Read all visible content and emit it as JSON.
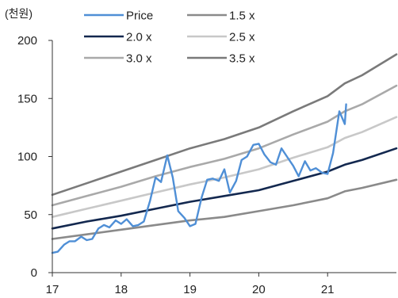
{
  "chart_data": {
    "type": "line",
    "unit_label": "(천원)",
    "xlabel": "",
    "ylabel": "",
    "xlim": [
      17.0,
      22.0
    ],
    "ylim": [
      0,
      200
    ],
    "x_ticks": [
      17,
      18,
      19,
      20,
      21
    ],
    "y_ticks": [
      0,
      50,
      100,
      150,
      200
    ],
    "grid": false,
    "legend_position": "top",
    "legend_order": [
      0,
      1,
      2,
      3,
      4,
      5
    ],
    "series": [
      {
        "name": "Price",
        "color": "#4f8fd6",
        "width": 2.4,
        "points": [
          [
            17.0,
            17
          ],
          [
            17.08,
            18
          ],
          [
            17.17,
            24
          ],
          [
            17.25,
            27
          ],
          [
            17.33,
            27
          ],
          [
            17.42,
            31
          ],
          [
            17.5,
            28
          ],
          [
            17.58,
            29
          ],
          [
            17.67,
            38
          ],
          [
            17.75,
            41
          ],
          [
            17.83,
            39
          ],
          [
            17.92,
            45
          ],
          [
            18.0,
            42
          ],
          [
            18.08,
            46
          ],
          [
            18.17,
            40
          ],
          [
            18.25,
            41
          ],
          [
            18.33,
            44
          ],
          [
            18.42,
            62
          ],
          [
            18.5,
            82
          ],
          [
            18.58,
            78
          ],
          [
            18.67,
            101
          ],
          [
            18.75,
            82
          ],
          [
            18.83,
            53
          ],
          [
            18.92,
            47
          ],
          [
            19.0,
            40
          ],
          [
            19.08,
            42
          ],
          [
            19.17,
            65
          ],
          [
            19.25,
            80
          ],
          [
            19.33,
            81
          ],
          [
            19.42,
            79
          ],
          [
            19.5,
            89
          ],
          [
            19.58,
            69
          ],
          [
            19.67,
            79
          ],
          [
            19.75,
            97
          ],
          [
            19.83,
            100
          ],
          [
            19.92,
            110
          ],
          [
            20.0,
            111
          ],
          [
            20.08,
            102
          ],
          [
            20.17,
            95
          ],
          [
            20.25,
            93
          ],
          [
            20.33,
            107
          ],
          [
            20.42,
            99
          ],
          [
            20.5,
            92
          ],
          [
            20.58,
            83
          ],
          [
            20.67,
            96
          ],
          [
            20.75,
            88
          ],
          [
            20.83,
            90
          ],
          [
            20.92,
            86
          ],
          [
            21.0,
            85
          ],
          [
            21.08,
            103
          ],
          [
            21.17,
            139
          ],
          [
            21.25,
            128
          ],
          [
            21.27,
            145
          ]
        ]
      },
      {
        "name": "1.5 x",
        "color": "#8a8a8a",
        "width": 2.6,
        "points": [
          [
            17.0,
            29
          ],
          [
            17.5,
            33
          ],
          [
            18.0,
            37
          ],
          [
            18.5,
            41
          ],
          [
            19.0,
            45
          ],
          [
            19.5,
            48
          ],
          [
            20.0,
            53
          ],
          [
            20.5,
            58
          ],
          [
            21.0,
            64
          ],
          [
            21.25,
            70
          ],
          [
            21.5,
            73
          ],
          [
            22.0,
            80
          ]
        ]
      },
      {
        "name": "2.0 x",
        "color": "#13284f",
        "width": 2.6,
        "points": [
          [
            17.0,
            38
          ],
          [
            17.5,
            44
          ],
          [
            18.0,
            49
          ],
          [
            18.5,
            55
          ],
          [
            19.0,
            61
          ],
          [
            19.5,
            66
          ],
          [
            20.0,
            71
          ],
          [
            20.5,
            79
          ],
          [
            21.0,
            87
          ],
          [
            21.25,
            93
          ],
          [
            21.5,
            97
          ],
          [
            22.0,
            107
          ]
        ]
      },
      {
        "name": "2.5 x",
        "color": "#c8c8c8",
        "width": 2.6,
        "points": [
          [
            17.0,
            48
          ],
          [
            17.5,
            55
          ],
          [
            18.0,
            62
          ],
          [
            18.5,
            69
          ],
          [
            19.0,
            76
          ],
          [
            19.5,
            82
          ],
          [
            20.0,
            89
          ],
          [
            20.5,
            99
          ],
          [
            21.0,
            108
          ],
          [
            21.25,
            116
          ],
          [
            21.5,
            121
          ],
          [
            22.0,
            134
          ]
        ]
      },
      {
        "name": "3.0 x",
        "color": "#a9a9a9",
        "width": 2.6,
        "points": [
          [
            17.0,
            58
          ],
          [
            17.5,
            66
          ],
          [
            18.0,
            74
          ],
          [
            18.5,
            83
          ],
          [
            19.0,
            91
          ],
          [
            19.5,
            98
          ],
          [
            20.0,
            107
          ],
          [
            20.5,
            119
          ],
          [
            21.0,
            130
          ],
          [
            21.25,
            139
          ],
          [
            21.5,
            145
          ],
          [
            22.0,
            161
          ]
        ]
      },
      {
        "name": "3.5 x",
        "color": "#7a7a7a",
        "width": 2.6,
        "points": [
          [
            17.0,
            67
          ],
          [
            17.5,
            77
          ],
          [
            18.0,
            87
          ],
          [
            18.5,
            97
          ],
          [
            19.0,
            107
          ],
          [
            19.5,
            115
          ],
          [
            20.0,
            125
          ],
          [
            20.5,
            139
          ],
          [
            21.0,
            152
          ],
          [
            21.25,
            163
          ],
          [
            21.5,
            170
          ],
          [
            22.0,
            188
          ]
        ]
      }
    ]
  }
}
